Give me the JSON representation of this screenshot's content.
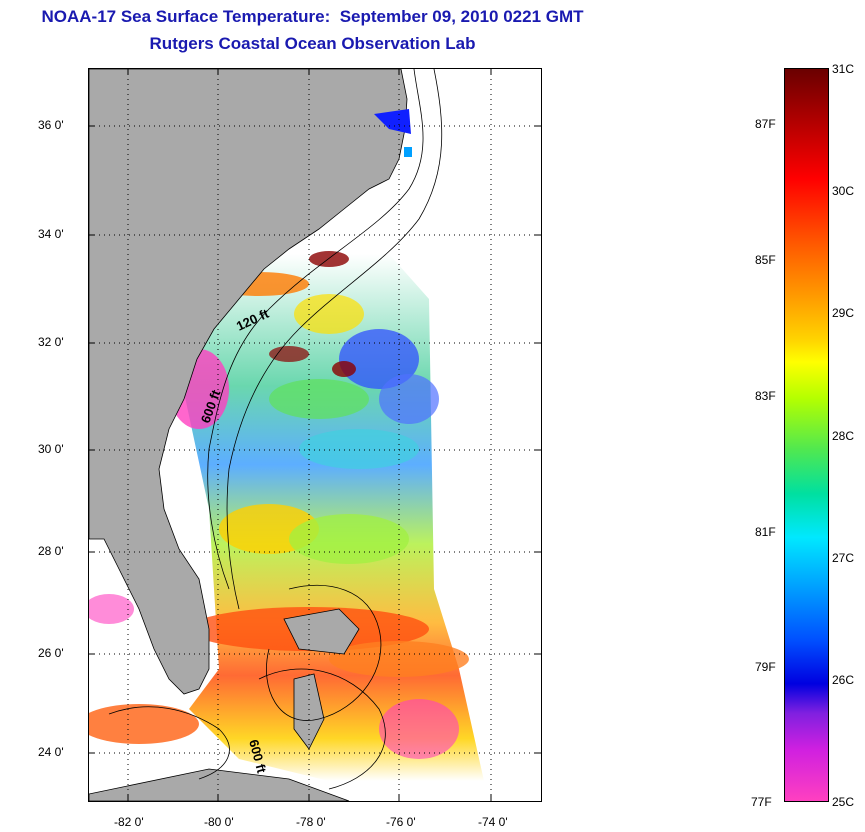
{
  "title": {
    "line1": "NOAA-17 Sea Surface Temperature:  September 09, 2010 0221 GMT",
    "line2": "Rutgers Coastal Ocean Observation Lab"
  },
  "map": {
    "lat_labels": [
      "36 0'",
      "34 0'",
      "32 0'",
      "30 0'",
      "28 0'",
      "26 0'",
      "24 0'"
    ],
    "lon_labels": [
      "-82 0'",
      "-80 0'",
      "-78 0'",
      "-76 0'",
      "-74 0'"
    ],
    "contour_labels": [
      "120 ft",
      "600 ft",
      "600 ft"
    ],
    "colors": {
      "land": "#a9a9a9",
      "cloud": "#ffffff",
      "grid": "#000000"
    }
  },
  "colorbar": {
    "celsius_labels": [
      "31C",
      "30C",
      "29C",
      "28C",
      "27C",
      "26C",
      "25C"
    ],
    "fahrenheit_labels": [
      "87F",
      "85F",
      "83F",
      "81F",
      "79F",
      "77F"
    ],
    "range_celsius": [
      25,
      31
    ]
  }
}
